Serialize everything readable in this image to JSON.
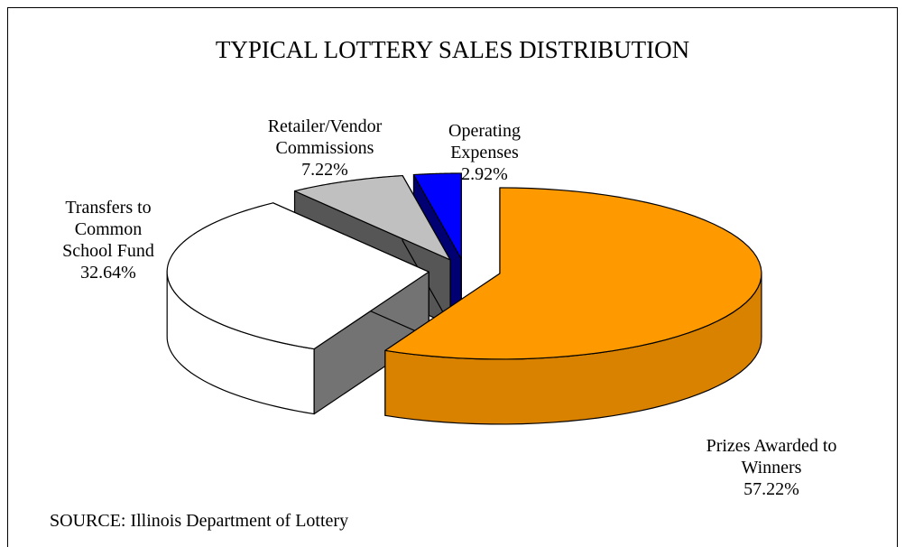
{
  "chart_data": {
    "type": "pie3d",
    "title": "TYPICAL LOTTERY SALES DISTRIBUTION",
    "annotation": "SOURCE: Illinois Department of Lottery",
    "categories": [
      "Prizes Awarded to Winners",
      "Transfers to Common School Fund",
      "Retailer/Vendor Commissions",
      "Operating Expenses"
    ],
    "values": [
      57.22,
      32.64,
      7.22,
      2.92
    ],
    "value_labels": [
      "57.22%",
      "32.64%",
      "7.22%",
      "2.92%"
    ],
    "colors": [
      "#ff9900",
      "#ffffff",
      "#c0c0c0",
      "#0000ff"
    ]
  }
}
